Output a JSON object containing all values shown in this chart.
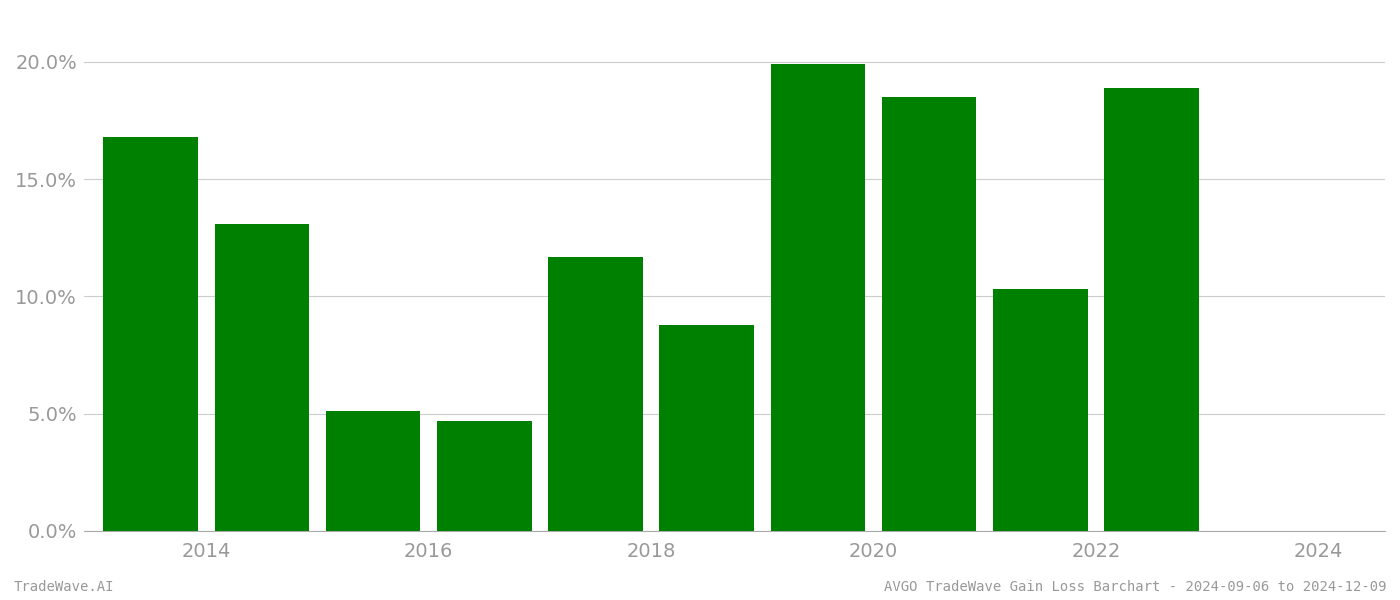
{
  "years": [
    2014,
    2015,
    2016,
    2017,
    2018,
    2019,
    2020,
    2021,
    2022,
    2023
  ],
  "values": [
    0.168,
    0.131,
    0.051,
    0.047,
    0.117,
    0.088,
    0.199,
    0.185,
    0.103,
    0.189
  ],
  "bar_color": "#008000",
  "background_color": "#ffffff",
  "grid_color": "#cccccc",
  "axis_color": "#aaaaaa",
  "tick_color": "#999999",
  "ylim": [
    0,
    0.22
  ],
  "yticks": [
    0.0,
    0.05,
    0.1,
    0.15,
    0.2
  ],
  "xtick_labels": [
    "2014",
    "2016",
    "2018",
    "2020",
    "2022",
    "2024"
  ],
  "xtick_positions": [
    2014.5,
    2016.5,
    2018.5,
    2020.5,
    2022.5,
    2024.5
  ],
  "footer_left": "TradeWave.AI",
  "footer_right": "AVGO TradeWave Gain Loss Barchart - 2024-09-06 to 2024-12-09",
  "footer_fontsize": 10,
  "bar_width": 0.85,
  "xlim": [
    2013.4,
    2025.1
  ],
  "tick_fontsize": 14
}
